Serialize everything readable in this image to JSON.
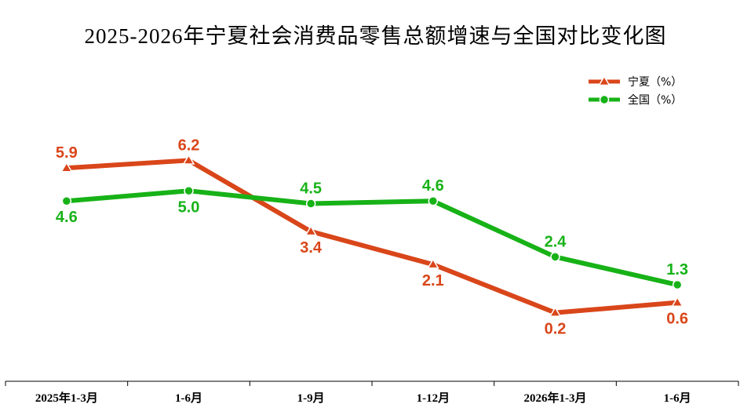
{
  "chart_data": {
    "type": "line",
    "title": "2025-2026年宁夏社会消费品零售总额增速与全国对比变化图",
    "categories": [
      "2025年1-3月",
      "1-6月",
      "1-9月",
      "1-12月",
      "2026年1-3月",
      "1-6月"
    ],
    "series": [
      {
        "name": "宁夏（%）",
        "values": [
          5.9,
          6.2,
          3.4,
          2.1,
          0.2,
          0.6
        ],
        "color": "#d9461a",
        "marker": "triangle"
      },
      {
        "name": "全国（%）",
        "values": [
          4.6,
          5.0,
          4.5,
          4.6,
          2.4,
          1.3
        ],
        "color": "#17b217",
        "marker": "circle"
      }
    ],
    "ylim": [
      -2.5,
      8.5
    ],
    "grid": false,
    "legend_position": "top-right",
    "data_labels": true
  }
}
